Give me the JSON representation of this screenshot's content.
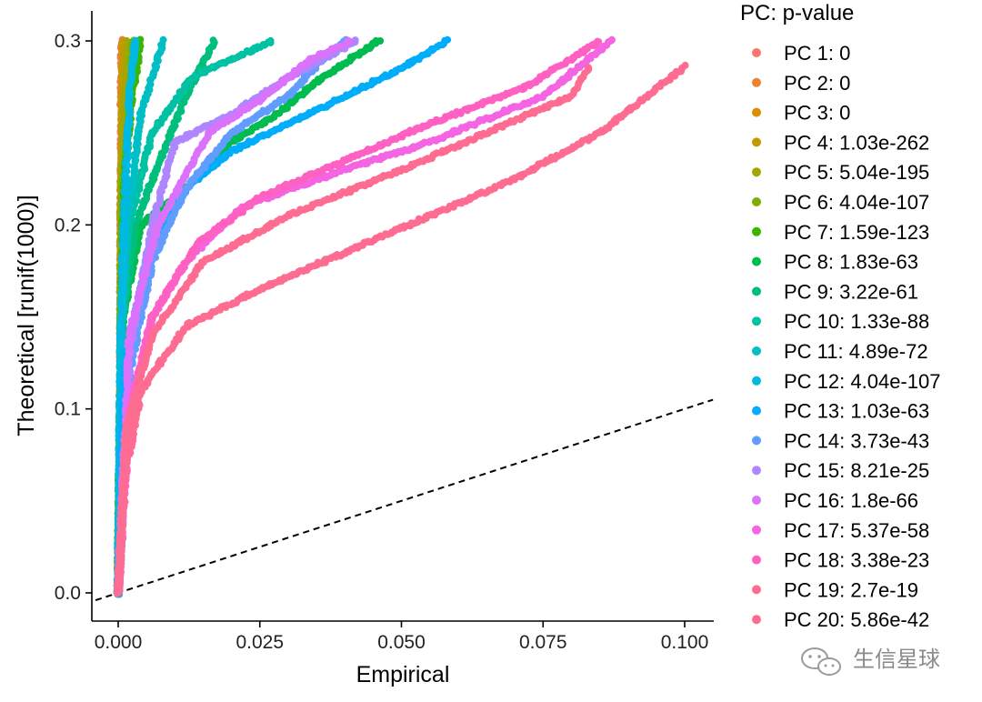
{
  "chart_data": {
    "type": "scatter",
    "xlabel": "Empirical",
    "ylabel": "Theoretical [runif(1000)]",
    "xlim": [
      0,
      0.1
    ],
    "ylim": [
      0,
      0.3
    ],
    "x_ticks": [
      "0.000",
      "0.025",
      "0.050",
      "0.075",
      "0.100"
    ],
    "y_ticks": [
      "0.0",
      "0.1",
      "0.2",
      "0.3"
    ],
    "reference_line": {
      "slope": 1,
      "intercept": 0,
      "style": "dashed"
    },
    "legend_title": "PC: p-value",
    "legend_position": "right",
    "series": [
      {
        "name": "PC 1: 0",
        "color": "#F8766D",
        "points": [
          [
            0,
            0
          ],
          [
            0.0004,
            0.05
          ],
          [
            0.0005,
            0.1
          ],
          [
            0.0005,
            0.2
          ],
          [
            0.0006,
            0.3
          ]
        ]
      },
      {
        "name": "PC 2: 0",
        "color": "#EA8331",
        "points": [
          [
            0,
            0
          ],
          [
            0.0005,
            0.06
          ],
          [
            0.0005,
            0.12
          ],
          [
            0.0006,
            0.22
          ],
          [
            0.0007,
            0.3
          ]
        ]
      },
      {
        "name": "PC 3: 0",
        "color": "#D89000",
        "points": [
          [
            0,
            0
          ],
          [
            0.0005,
            0.1
          ],
          [
            0.0006,
            0.2
          ],
          [
            0.0007,
            0.25
          ],
          [
            0.0008,
            0.3
          ]
        ]
      },
      {
        "name": "PC 4: 1.03e-262",
        "color": "#C09B00",
        "points": [
          [
            0,
            0
          ],
          [
            0.0004,
            0.08
          ],
          [
            0.0005,
            0.18
          ],
          [
            0.0008,
            0.27
          ],
          [
            0.001,
            0.3
          ]
        ]
      },
      {
        "name": "PC 5: 5.04e-195",
        "color": "#A3A500",
        "points": [
          [
            0,
            0
          ],
          [
            0.0005,
            0.1
          ],
          [
            0.0005,
            0.22
          ],
          [
            0.0012,
            0.27
          ],
          [
            0.0017,
            0.3
          ]
        ]
      },
      {
        "name": "PC 6: 4.04e-107",
        "color": "#7CAE00",
        "points": [
          [
            0,
            0
          ],
          [
            0.0005,
            0.14
          ],
          [
            0.0008,
            0.22
          ],
          [
            0.0022,
            0.27
          ],
          [
            0.0026,
            0.3
          ]
        ]
      },
      {
        "name": "PC 7: 1.59e-123",
        "color": "#39B600",
        "points": [
          [
            0,
            0
          ],
          [
            0.0006,
            0.16
          ],
          [
            0.0012,
            0.23
          ],
          [
            0.0025,
            0.27
          ],
          [
            0.004,
            0.3
          ]
        ]
      },
      {
        "name": "PC 8: 1.83e-63",
        "color": "#00BB4E",
        "points": [
          [
            0,
            0
          ],
          [
            0.0008,
            0.15
          ],
          [
            0.004,
            0.2
          ],
          [
            0.012,
            0.22
          ],
          [
            0.02,
            0.245
          ],
          [
            0.028,
            0.26
          ],
          [
            0.036,
            0.28
          ],
          [
            0.046,
            0.3
          ]
        ]
      },
      {
        "name": "PC 9: 3.22e-61",
        "color": "#00BF7D",
        "points": [
          [
            0,
            0
          ],
          [
            0.0008,
            0.15
          ],
          [
            0.003,
            0.2
          ],
          [
            0.008,
            0.24
          ],
          [
            0.012,
            0.27
          ],
          [
            0.017,
            0.3
          ]
        ]
      },
      {
        "name": "PC 10: 1.33e-88",
        "color": "#00C1A3",
        "points": [
          [
            0,
            0
          ],
          [
            0.0006,
            0.15
          ],
          [
            0.002,
            0.2
          ],
          [
            0.006,
            0.25
          ],
          [
            0.013,
            0.28
          ],
          [
            0.027,
            0.3
          ]
        ]
      },
      {
        "name": "PC 11: 4.89e-72",
        "color": "#00BFC4",
        "points": [
          [
            0,
            0
          ],
          [
            0.0006,
            0.15
          ],
          [
            0.0015,
            0.2
          ],
          [
            0.004,
            0.26
          ],
          [
            0.006,
            0.28
          ],
          [
            0.008,
            0.3
          ]
        ]
      },
      {
        "name": "PC 12: 4.04e-107",
        "color": "#00B9E3",
        "points": [
          [
            0,
            0
          ],
          [
            0.0005,
            0.14
          ],
          [
            0.001,
            0.2
          ],
          [
            0.002,
            0.27
          ],
          [
            0.003,
            0.3
          ]
        ]
      },
      {
        "name": "PC 13: 1.03e-63",
        "color": "#00ADFA",
        "points": [
          [
            0,
            0
          ],
          [
            0.001,
            0.12
          ],
          [
            0.005,
            0.18
          ],
          [
            0.012,
            0.22
          ],
          [
            0.02,
            0.24
          ],
          [
            0.03,
            0.255
          ],
          [
            0.04,
            0.27
          ],
          [
            0.05,
            0.285
          ],
          [
            0.058,
            0.3
          ]
        ]
      },
      {
        "name": "PC 14: 3.73e-43",
        "color": "#619CFF",
        "points": [
          [
            0,
            0
          ],
          [
            0.002,
            0.12
          ],
          [
            0.006,
            0.18
          ],
          [
            0.012,
            0.22
          ],
          [
            0.02,
            0.25
          ],
          [
            0.03,
            0.27
          ],
          [
            0.036,
            0.29
          ],
          [
            0.04,
            0.3
          ]
        ]
      },
      {
        "name": "PC 15: 8.21e-25",
        "color": "#AE87FF",
        "points": [
          [
            0,
            0
          ],
          [
            0.002,
            0.13
          ],
          [
            0.006,
            0.2
          ],
          [
            0.01,
            0.245
          ],
          [
            0.02,
            0.26
          ],
          [
            0.03,
            0.28
          ],
          [
            0.042,
            0.3
          ]
        ]
      },
      {
        "name": "PC 16: 1.8e-66",
        "color": "#DB72FB",
        "points": [
          [
            0,
            0
          ],
          [
            0.002,
            0.14
          ],
          [
            0.007,
            0.2
          ],
          [
            0.016,
            0.25
          ],
          [
            0.026,
            0.27
          ],
          [
            0.034,
            0.29
          ],
          [
            0.041,
            0.3
          ]
        ]
      },
      {
        "name": "PC 17: 5.37e-58",
        "color": "#F564E3",
        "points": [
          [
            0,
            0
          ],
          [
            0.002,
            0.1
          ],
          [
            0.006,
            0.15
          ],
          [
            0.012,
            0.18
          ],
          [
            0.022,
            0.21
          ],
          [
            0.04,
            0.23
          ],
          [
            0.055,
            0.245
          ],
          [
            0.075,
            0.27
          ],
          [
            0.087,
            0.3
          ]
        ]
      },
      {
        "name": "PC 18: 3.38e-23",
        "color": "#FF61C3",
        "points": [
          [
            0,
            0
          ],
          [
            0.0015,
            0.09
          ],
          [
            0.006,
            0.15
          ],
          [
            0.014,
            0.19
          ],
          [
            0.025,
            0.215
          ],
          [
            0.04,
            0.235
          ],
          [
            0.055,
            0.255
          ],
          [
            0.072,
            0.275
          ],
          [
            0.085,
            0.3
          ]
        ]
      },
      {
        "name": "PC 19: 2.7e-19",
        "color": "#FF6C91",
        "points": [
          [
            0,
            0
          ],
          [
            0.0015,
            0.09
          ],
          [
            0.006,
            0.14
          ],
          [
            0.015,
            0.18
          ],
          [
            0.03,
            0.205
          ],
          [
            0.05,
            0.23
          ],
          [
            0.065,
            0.25
          ],
          [
            0.08,
            0.27
          ],
          [
            0.083,
            0.285
          ]
        ]
      },
      {
        "name": "PC 20: 5.86e-42",
        "color": "#FF6C91",
        "points": [
          [
            0,
            0
          ],
          [
            0.001,
            0.06
          ],
          [
            0.004,
            0.11
          ],
          [
            0.012,
            0.145
          ],
          [
            0.025,
            0.165
          ],
          [
            0.04,
            0.185
          ],
          [
            0.055,
            0.205
          ],
          [
            0.07,
            0.225
          ],
          [
            0.085,
            0.25
          ],
          [
            0.1,
            0.286
          ]
        ]
      }
    ]
  },
  "watermark": {
    "text": "生信星球"
  },
  "colors": {
    "axis": "#000000",
    "reference_line": "#000000",
    "background": "#ffffff"
  }
}
